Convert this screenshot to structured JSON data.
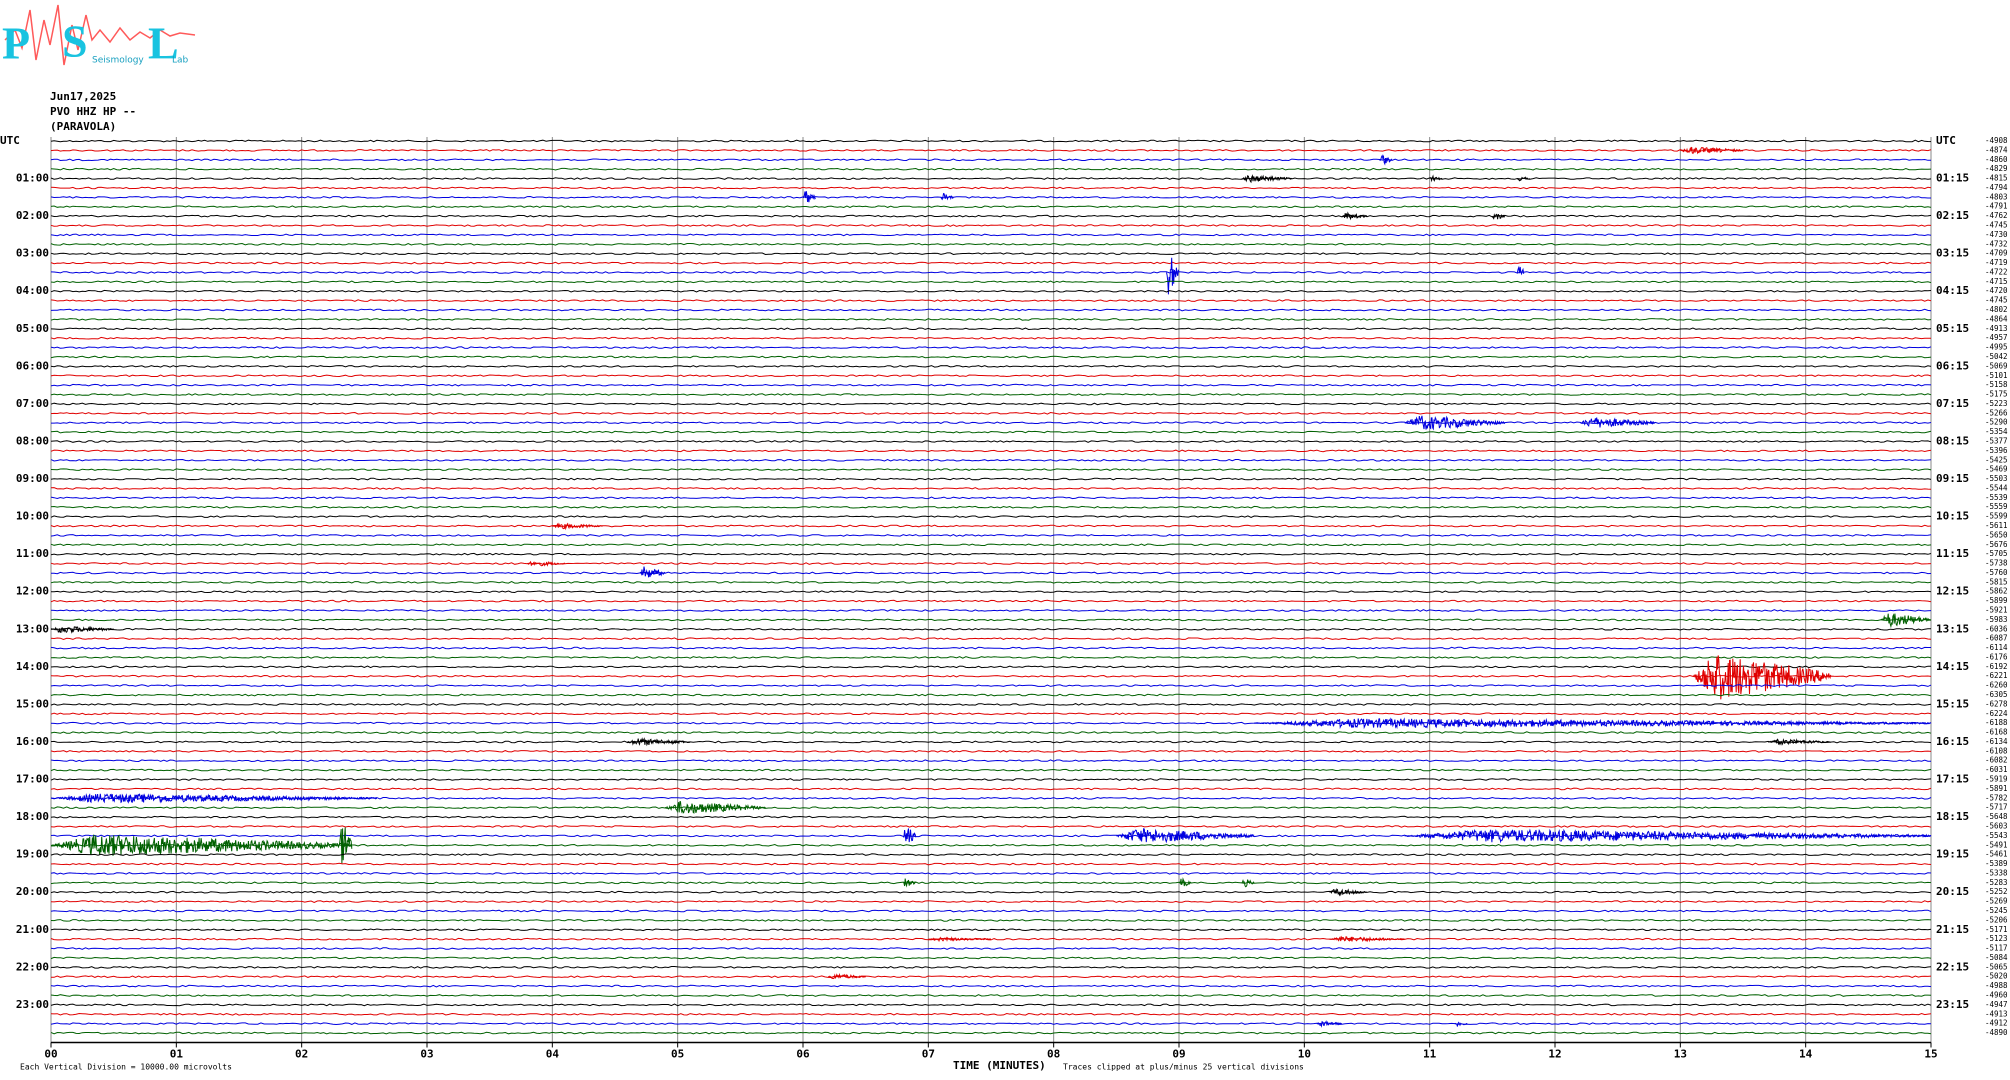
{
  "logo": {
    "letters": [
      "P",
      "S",
      "L"
    ],
    "words": [
      "Seismology",
      "Lab"
    ]
  },
  "header": [
    "Jun17,2025",
    "PVO HHZ HP --",
    "(PARAVOLA)"
  ],
  "footer": {
    "scale": "Each Vertical Division = 10000.00 microvolts",
    "clip": "Traces clipped at plus/minus 25 vertical divisions"
  },
  "chart_data": {
    "type": "helicorder",
    "xlabel": "TIME (MINUTES)",
    "xlim": [
      0,
      15
    ],
    "xticks": [
      {
        "value": 0,
        "label": "00"
      },
      {
        "value": 1,
        "label": "01"
      },
      {
        "value": 2,
        "label": "02"
      },
      {
        "value": 3,
        "label": "03"
      },
      {
        "value": 4,
        "label": "04"
      },
      {
        "value": 5,
        "label": "05"
      },
      {
        "value": 6,
        "label": "06"
      },
      {
        "value": 7,
        "label": "07"
      },
      {
        "value": 8,
        "label": "08"
      },
      {
        "value": 9,
        "label": "09"
      },
      10,
      11,
      12,
      13,
      14,
      15
    ],
    "grid": true,
    "colors": [
      "#000000",
      "#e00000",
      "#0000e0",
      "#006000"
    ],
    "left_labels": [
      "UTC",
      "01:00",
      "02:00",
      "03:00",
      "04:00",
      "05:00",
      "06:00",
      "07:00",
      "08:00",
      "09:00",
      "10:00",
      "11:00",
      "12:00",
      "13:00",
      "14:00",
      "15:00",
      "16:00",
      "17:00",
      "18:00",
      "19:00",
      "20:00",
      "21:00",
      "22:00",
      "23:00"
    ],
    "right_labels": [
      "UTC",
      "01:15",
      "02:15",
      "03:15",
      "04:15",
      "05:15",
      "06:15",
      "07:15",
      "08:15",
      "09:15",
      "10:15",
      "11:15",
      "12:15",
      "13:15",
      "14:15",
      "15:15",
      "16:15",
      "17:15",
      "18:15",
      "19:15",
      "20:15",
      "21:15",
      "22:15",
      "23:15"
    ],
    "traces": [
      {
        "offset": -4908
      },
      {
        "offset": -4874,
        "events": [
          {
            "start": 13.0,
            "end": 13.5,
            "amplitude": 0.4
          }
        ]
      },
      {
        "offset": -4860,
        "events": [
          {
            "start": 10.6,
            "end": 10.7,
            "amplitude": 0.6
          }
        ]
      },
      {
        "offset": -4829
      },
      {
        "offset": -4815,
        "events": [
          {
            "start": 9.5,
            "end": 9.9,
            "amplitude": 0.4
          },
          {
            "start": 11.0,
            "end": 11.1,
            "amplitude": 0.3
          },
          {
            "start": 11.7,
            "end": 11.8,
            "amplitude": 0.3
          }
        ]
      },
      {
        "offset": -4794
      },
      {
        "offset": -4803,
        "events": [
          {
            "start": 6.0,
            "end": 6.1,
            "amplitude": 0.8
          },
          {
            "start": 7.1,
            "end": 7.2,
            "amplitude": 0.5
          }
        ]
      },
      {
        "offset": -4791
      },
      {
        "offset": -4762,
        "events": [
          {
            "start": 10.3,
            "end": 10.5,
            "amplitude": 0.4
          },
          {
            "start": 11.5,
            "end": 11.6,
            "amplitude": 0.5
          }
        ]
      },
      {
        "offset": -4745
      },
      {
        "offset": -4730
      },
      {
        "offset": -4732
      },
      {
        "offset": -4709
      },
      {
        "offset": -4719
      },
      {
        "offset": -4722,
        "events": [
          {
            "start": 8.9,
            "end": 9.0,
            "amplitude": 2.5
          },
          {
            "start": 11.7,
            "end": 11.75,
            "amplitude": 1.5
          }
        ]
      },
      {
        "offset": -4715
      },
      {
        "offset": -4720
      },
      {
        "offset": -4745
      },
      {
        "offset": -4802
      },
      {
        "offset": -4864
      },
      {
        "offset": -4913
      },
      {
        "offset": -4957
      },
      {
        "offset": -4995
      },
      {
        "offset": -5042
      },
      {
        "offset": -5069
      },
      {
        "offset": -5101
      },
      {
        "offset": -5158
      },
      {
        "offset": -5175
      },
      {
        "offset": -5223
      },
      {
        "offset": -5266
      },
      {
        "offset": -5290,
        "events": [
          {
            "start": 10.8,
            "end": 11.6,
            "amplitude": 0.8
          },
          {
            "start": 12.2,
            "end": 12.8,
            "amplitude": 0.6
          }
        ]
      },
      {
        "offset": -5354
      },
      {
        "offset": -5377
      },
      {
        "offset": -5396
      },
      {
        "offset": -5425
      },
      {
        "offset": -5469
      },
      {
        "offset": -5503
      },
      {
        "offset": -5544
      },
      {
        "offset": -5539
      },
      {
        "offset": -5559
      },
      {
        "offset": -5599
      },
      {
        "offset": -5611,
        "events": [
          {
            "start": 4.0,
            "end": 4.4,
            "amplitude": 0.3
          }
        ]
      },
      {
        "offset": -5650
      },
      {
        "offset": -5676
      },
      {
        "offset": -5705
      },
      {
        "offset": -5738,
        "events": [
          {
            "start": 3.8,
            "end": 4.1,
            "amplitude": 0.3
          }
        ]
      },
      {
        "offset": -5760,
        "events": [
          {
            "start": 4.7,
            "end": 4.9,
            "amplitude": 0.7
          }
        ]
      },
      {
        "offset": -5815
      },
      {
        "offset": -5862
      },
      {
        "offset": -5899
      },
      {
        "offset": -5921
      },
      {
        "offset": -5983,
        "events": [
          {
            "start": 14.6,
            "end": 15.0,
            "amplitude": 0.8
          }
        ]
      },
      {
        "offset": -6036,
        "events": [
          {
            "start": 0.0,
            "end": 0.5,
            "amplitude": 0.4
          }
        ]
      },
      {
        "offset": -6087
      },
      {
        "offset": -6114
      },
      {
        "offset": -6176
      },
      {
        "offset": -6192
      },
      {
        "offset": -6221,
        "events": [
          {
            "start": 13.1,
            "end": 14.2,
            "amplitude": 2.6
          }
        ]
      },
      {
        "offset": -6260
      },
      {
        "offset": -6305
      },
      {
        "offset": -6278
      },
      {
        "offset": -6224
      },
      {
        "offset": -6188,
        "events": [
          {
            "start": 9.6,
            "end": 15.0,
            "amplitude": 0.5
          }
        ]
      },
      {
        "offset": -6168
      },
      {
        "offset": -6134,
        "events": [
          {
            "start": 4.6,
            "end": 5.1,
            "amplitude": 0.4
          },
          {
            "start": 13.7,
            "end": 14.2,
            "amplitude": 0.3
          }
        ]
      },
      {
        "offset": -6108
      },
      {
        "offset": -6082
      },
      {
        "offset": -6031
      },
      {
        "offset": -5919
      },
      {
        "offset": -5891
      },
      {
        "offset": -5782,
        "events": [
          {
            "start": 0.0,
            "end": 2.6,
            "amplitude": 0.5
          }
        ]
      },
      {
        "offset": -5717,
        "events": [
          {
            "start": 4.9,
            "end": 5.7,
            "amplitude": 0.7
          }
        ]
      },
      {
        "offset": -5648
      },
      {
        "offset": -5603
      },
      {
        "offset": -5543,
        "events": [
          {
            "start": 6.8,
            "end": 6.9,
            "amplitude": 1.2
          },
          {
            "start": 8.5,
            "end": 9.6,
            "amplitude": 0.8
          },
          {
            "start": 10.8,
            "end": 15.0,
            "amplitude": 0.7
          }
        ]
      },
      {
        "offset": -5491,
        "events": [
          {
            "start": 0.0,
            "end": 2.4,
            "amplitude": 1.2
          },
          {
            "start": 2.3,
            "end": 2.4,
            "amplitude": 3.0
          }
        ]
      },
      {
        "offset": -5461
      },
      {
        "offset": -5389
      },
      {
        "offset": -5338
      },
      {
        "offset": -5283,
        "events": [
          {
            "start": 6.8,
            "end": 6.9,
            "amplitude": 0.5
          },
          {
            "start": 9.0,
            "end": 9.1,
            "amplitude": 0.5
          },
          {
            "start": 9.5,
            "end": 9.6,
            "amplitude": 0.5
          }
        ]
      },
      {
        "offset": -5252,
        "events": [
          {
            "start": 10.2,
            "end": 10.5,
            "amplitude": 0.4
          }
        ]
      },
      {
        "offset": -5269
      },
      {
        "offset": -5245
      },
      {
        "offset": -5206
      },
      {
        "offset": -5171
      },
      {
        "offset": -5123,
        "events": [
          {
            "start": 7.0,
            "end": 7.5,
            "amplitude": 0.2
          },
          {
            "start": 10.2,
            "end": 10.8,
            "amplitude": 0.3
          }
        ]
      },
      {
        "offset": -5117
      },
      {
        "offset": -5084
      },
      {
        "offset": -5065
      },
      {
        "offset": -5020,
        "events": [
          {
            "start": 6.2,
            "end": 6.5,
            "amplitude": 0.3
          }
        ]
      },
      {
        "offset": -4988
      },
      {
        "offset": -4960
      },
      {
        "offset": -4947
      },
      {
        "offset": -4913
      },
      {
        "offset": -4912,
        "events": [
          {
            "start": 10.1,
            "end": 10.3,
            "amplitude": 0.3
          },
          {
            "start": 11.2,
            "end": 11.3,
            "amplitude": 0.4
          }
        ]
      },
      {
        "offset": -4890
      }
    ]
  }
}
